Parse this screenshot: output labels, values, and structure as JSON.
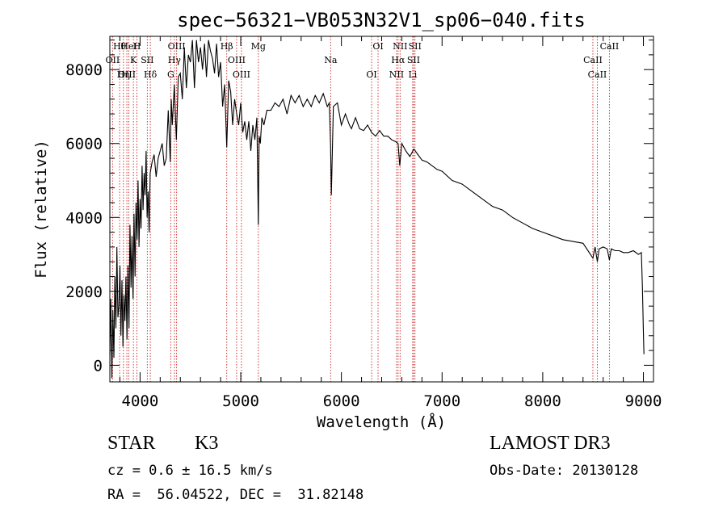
{
  "chart_data": {
    "type": "line",
    "title": "spec−56321−VB053N32V1_sp06−040.fits",
    "xlabel": "Wavelength (Å)",
    "ylabel": "Flux (relative)",
    "xlim": [
      3700,
      9100
    ],
    "ylim": [
      -450,
      8900
    ],
    "xticks": [
      "4000",
      "5000",
      "6000",
      "7000",
      "8000",
      "9000"
    ],
    "yticks": [
      "0",
      "2000",
      "4000",
      "6000",
      "8000"
    ],
    "grid": false,
    "series": [
      {
        "x": [
          3700,
          3710,
          3720,
          3730,
          3740,
          3750,
          3760,
          3770,
          3780,
          3790,
          3800,
          3810,
          3820,
          3830,
          3840,
          3850,
          3860,
          3870,
          3880,
          3890,
          3900,
          3910,
          3920,
          3930,
          3940,
          3950,
          3960,
          3970,
          3980,
          3990,
          4000,
          4010,
          4020,
          4030,
          4040,
          4050,
          4060,
          4070,
          4080,
          4090,
          4100,
          4120,
          4140,
          4160,
          4180,
          4200,
          4220,
          4240,
          4260,
          4280,
          4300,
          4310,
          4320,
          4340,
          4360,
          4380,
          4400,
          4420,
          4440,
          4460,
          4480,
          4500,
          4520,
          4540,
          4560,
          4580,
          4600,
          4620,
          4640,
          4660,
          4680,
          4700,
          4720,
          4740,
          4760,
          4780,
          4800,
          4820,
          4840,
          4861,
          4880,
          4900,
          4920,
          4940,
          4960,
          4980,
          5000,
          5020,
          5040,
          5060,
          5080,
          5100,
          5120,
          5140,
          5160,
          5175,
          5183,
          5195,
          5210,
          5230,
          5260,
          5300,
          5340,
          5380,
          5420,
          5460,
          5500,
          5540,
          5580,
          5620,
          5660,
          5700,
          5740,
          5780,
          5820,
          5860,
          5880,
          5893,
          5900,
          5920,
          5960,
          6000,
          6040,
          6080,
          6100,
          6140,
          6180,
          6220,
          6260,
          6300,
          6340,
          6380,
          6420,
          6460,
          6500,
          6540,
          6563,
          6580,
          6600,
          6640,
          6680,
          6720,
          6760,
          6800,
          6850,
          6900,
          6950,
          7000,
          7100,
          7200,
          7300,
          7400,
          7500,
          7600,
          7700,
          7800,
          7900,
          8000,
          8100,
          8200,
          8300,
          8400,
          8498,
          8520,
          8542,
          8560,
          8600,
          8640,
          8662,
          8680,
          8720,
          8760,
          8800,
          8850,
          8900,
          8950,
          8980,
          8990,
          9000,
          9005
        ],
        "y": [
          300,
          1800,
          -350,
          1500,
          200,
          2400,
          1000,
          3200,
          1300,
          1600,
          2700,
          800,
          2300,
          500,
          1900,
          1200,
          2400,
          700,
          2700,
          1000,
          3800,
          2100,
          3500,
          1800,
          4100,
          2400,
          4400,
          3400,
          5000,
          3200,
          4500,
          3700,
          5400,
          4200,
          5200,
          4600,
          5800,
          4000,
          4700,
          3600,
          5200,
          5500,
          5700,
          5100,
          5600,
          5800,
          6000,
          5400,
          5600,
          6900,
          5500,
          7200,
          6500,
          7600,
          6100,
          7800,
          7900,
          7200,
          8600,
          7500,
          8400,
          8200,
          8800,
          7500,
          8800,
          8200,
          8600,
          8000,
          8700,
          7800,
          8800,
          8500,
          8300,
          7900,
          8700,
          7800,
          8200,
          7000,
          7600,
          5900,
          7700,
          7400,
          6500,
          7200,
          6800,
          6500,
          7100,
          6300,
          6600,
          6100,
          6600,
          5800,
          6500,
          6100,
          6700,
          3800,
          6200,
          6000,
          6700,
          6500,
          6900,
          6900,
          7100,
          7000,
          7200,
          6800,
          7300,
          7100,
          7300,
          7000,
          7200,
          7000,
          7300,
          7100,
          7350,
          7000,
          7100,
          5900,
          4600,
          7000,
          7100,
          6500,
          6800,
          6500,
          6400,
          6700,
          6400,
          6350,
          6500,
          6300,
          6200,
          6350,
          6200,
          6200,
          6100,
          6050,
          6000,
          5400,
          6000,
          5800,
          5650,
          5850,
          5700,
          5550,
          5500,
          5400,
          5300,
          5250,
          5000,
          4900,
          4700,
          4500,
          4300,
          4200,
          4000,
          3850,
          3700,
          3600,
          3500,
          3400,
          3350,
          3300,
          2900,
          3200,
          2800,
          3150,
          3200,
          3150,
          2850,
          3150,
          3100,
          3100,
          3050,
          3050,
          3100,
          3000,
          3050,
          2100,
          900,
          300
        ]
      }
    ],
    "lines": [
      {
        "name": "Hθ",
        "x": 3797
      },
      {
        "name": "OII",
        "x": 3727
      },
      {
        "name": "OIII",
        "x": 3869
      },
      {
        "name": "HeI",
        "x": 3889
      },
      {
        "name": "K",
        "x": 3934
      },
      {
        "name": "Hη",
        "x": 3835
      },
      {
        "name": "H",
        "x": 3969
      },
      {
        "name": "SII",
        "x": 4072
      },
      {
        "name": "Hδ",
        "x": 4102
      },
      {
        "name": "OIII",
        "x": 4363
      },
      {
        "name": "Hγ",
        "x": 4341
      },
      {
        "name": "G",
        "x": 4305
      },
      {
        "name": "Hβ",
        "x": 4861
      },
      {
        "name": "OIII",
        "x": 4959
      },
      {
        "name": "OIII",
        "x": 5007
      },
      {
        "name": "Mg",
        "x": 5175
      },
      {
        "name": "Na",
        "x": 5893
      },
      {
        "name": "OI",
        "x": 6300
      },
      {
        "name": "OI",
        "x": 6364
      },
      {
        "name": "Hα",
        "x": 6563
      },
      {
        "name": "NII",
        "x": 6548
      },
      {
        "name": "NII",
        "x": 6583
      },
      {
        "name": "SII",
        "x": 6717
      },
      {
        "name": "Li",
        "x": 6708
      },
      {
        "name": "SII",
        "x": 6731
      },
      {
        "name": "CaII",
        "x": 8498
      },
      {
        "name": "CaII",
        "x": 8542
      },
      {
        "name": "CaII",
        "x": 8662
      }
    ]
  },
  "info": {
    "class": "STAR",
    "subclass": "K3",
    "survey": "LAMOST DR3",
    "cz": "cz = 0.6 ± 16.5 km/s",
    "obs_date": "Obs-Date: 20130128",
    "coords": "RA =  56.04522, DEC =  31.82148"
  },
  "colors": {
    "line_marker": "#cc2222",
    "spectrum": "#000000",
    "axes": "#000000"
  }
}
